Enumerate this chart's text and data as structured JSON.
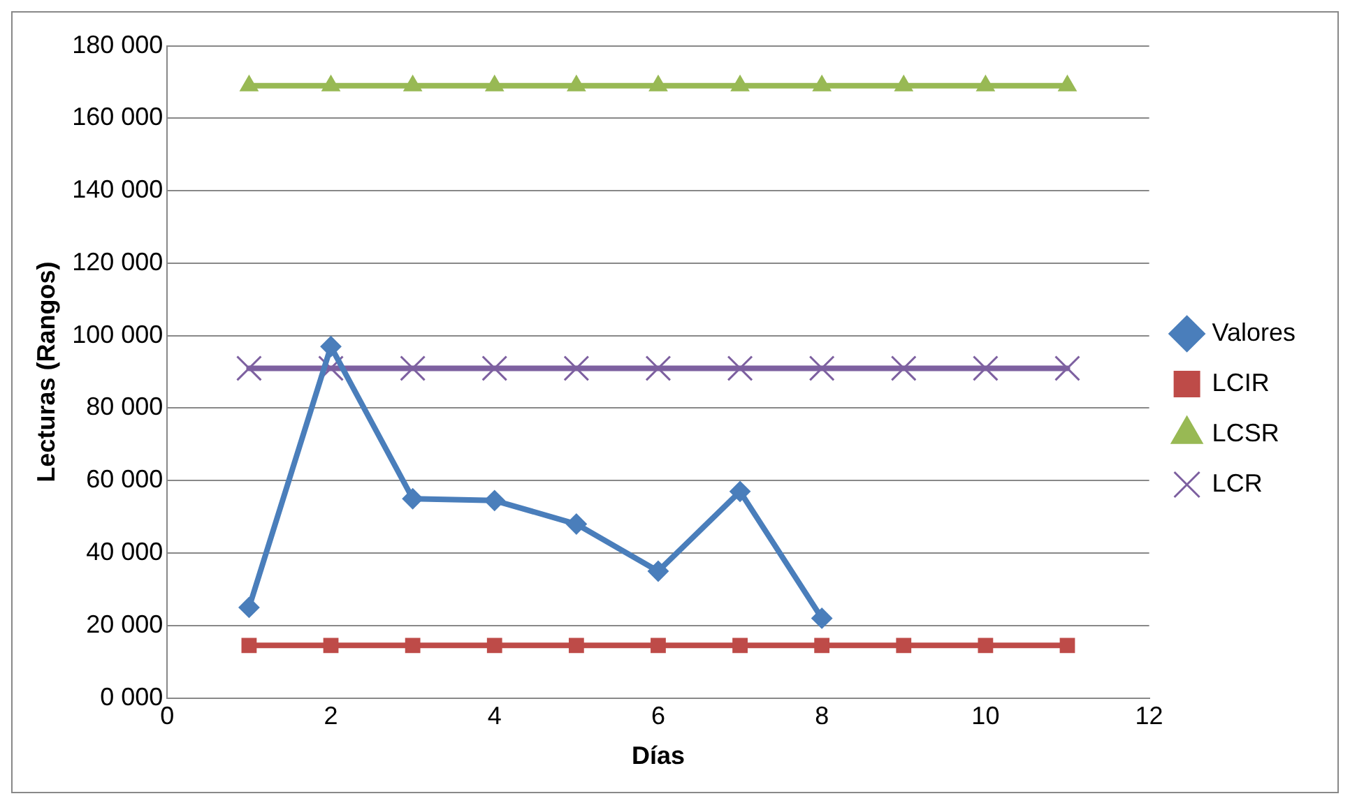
{
  "chart_data": {
    "type": "line",
    "xlabel": "Días",
    "ylabel": "Lecturas (Rangos)",
    "x": [
      1,
      2,
      3,
      4,
      5,
      6,
      7,
      8,
      9,
      10,
      11
    ],
    "xlim": [
      0,
      12
    ],
    "xticks": [
      0,
      2,
      4,
      6,
      8,
      10,
      12
    ],
    "ylim": [
      0,
      180000
    ],
    "yticks": [
      {
        "value": 0,
        "label": "0 000"
      },
      {
        "value": 20000,
        "label": "20 000"
      },
      {
        "value": 40000,
        "label": "40 000"
      },
      {
        "value": 60000,
        "label": "60 000"
      },
      {
        "value": 80000,
        "label": "80 000"
      },
      {
        "value": 100000,
        "label": "100 000"
      },
      {
        "value": 120000,
        "label": "120 000"
      },
      {
        "value": 140000,
        "label": "140 000"
      },
      {
        "value": 160000,
        "label": "160 000"
      },
      {
        "value": 180000,
        "label": "180 000"
      }
    ],
    "grid": "y",
    "legend": "right",
    "line_style": "solid",
    "series": [
      {
        "name": "Valores",
        "color": "#4a7ebb",
        "marker": "diamond",
        "values": [
          25000,
          97000,
          55000,
          54500,
          48000,
          35000,
          57000,
          22000,
          null,
          null,
          null
        ]
      },
      {
        "name": "LCIR",
        "color": "#be4b48",
        "marker": "square",
        "values": [
          14500,
          14500,
          14500,
          14500,
          14500,
          14500,
          14500,
          14500,
          14500,
          14500,
          14500
        ]
      },
      {
        "name": "LCSR",
        "color": "#98b954",
        "marker": "triangle",
        "values": [
          169000,
          169000,
          169000,
          169000,
          169000,
          169000,
          169000,
          169000,
          169000,
          169000,
          169000
        ]
      },
      {
        "name": "LCR",
        "color": "#7d60a0",
        "marker": "cross",
        "values": [
          91000,
          91000,
          91000,
          91000,
          91000,
          91000,
          91000,
          91000,
          91000,
          91000,
          91000
        ]
      }
    ]
  }
}
